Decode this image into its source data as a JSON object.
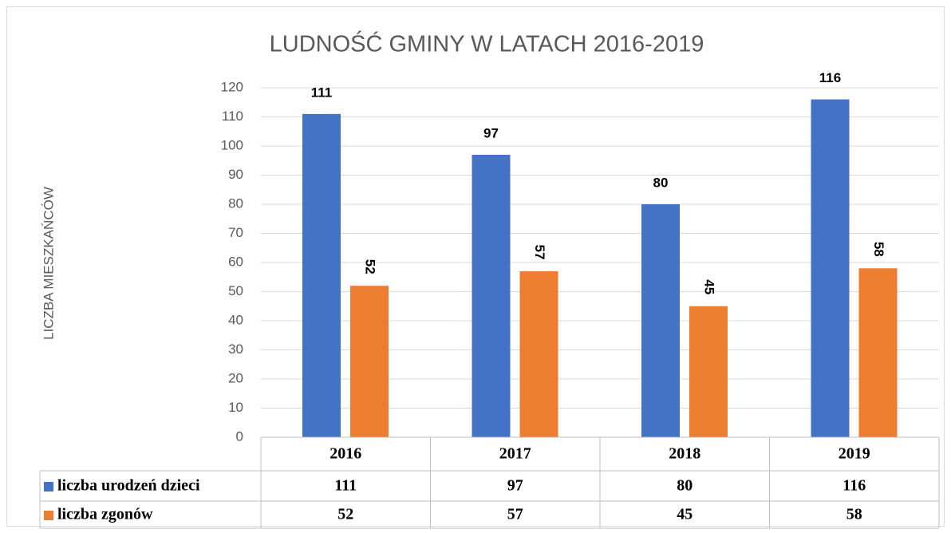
{
  "chart_data": {
    "type": "bar",
    "title": "LUDNOŚĆ GMINY W LATACH 2016-2019",
    "y_label": "LICZBA MIESZKAŃCÓW",
    "categories": [
      "2016",
      "2017",
      "2018",
      "2019"
    ],
    "series": [
      {
        "name": "liczba urodzeń dzieci",
        "color": "#4472c4",
        "values": [
          111,
          97,
          80,
          116
        ]
      },
      {
        "name": "liczba zgonów",
        "color": "#ed7d31",
        "values": [
          52,
          57,
          45,
          58
        ]
      }
    ],
    "ylim": [
      0,
      120
    ],
    "yticks": [
      0,
      10,
      20,
      30,
      40,
      50,
      60,
      70,
      80,
      90,
      100,
      110,
      120
    ],
    "grid": true,
    "data_table": true
  }
}
